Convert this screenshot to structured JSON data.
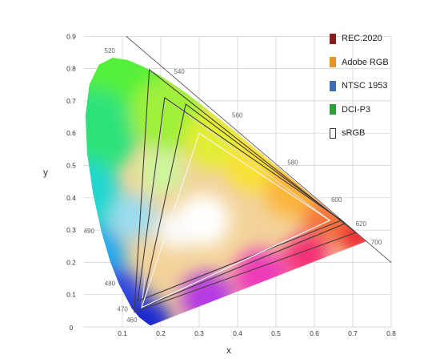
{
  "chart_data": {
    "type": "scatter",
    "xlabel": "x",
    "ylabel": "y",
    "xlim": [
      0,
      0.8
    ],
    "ylim": [
      0,
      0.9
    ],
    "x_ticks": [
      "0.1",
      "0.2",
      "0.3",
      "0.4",
      "0.5",
      "0.6",
      "0.7",
      "0.8"
    ],
    "y_ticks": [
      "0",
      "0.1",
      "0.2",
      "0.3",
      "0.4",
      "0.5",
      "0.6",
      "0.7",
      "0.8",
      "0.9"
    ],
    "spectral_locus": [
      [
        0.1741,
        0.005
      ],
      [
        0.1733,
        0.0048
      ],
      [
        0.1666,
        0.0089
      ],
      [
        0.144,
        0.0297
      ],
      [
        0.1241,
        0.0578
      ],
      [
        0.0913,
        0.1327
      ],
      [
        0.0687,
        0.2007
      ],
      [
        0.0454,
        0.295
      ],
      [
        0.0235,
        0.4127
      ],
      [
        0.0082,
        0.5384
      ],
      [
        0.0039,
        0.6548
      ],
      [
        0.0139,
        0.7502
      ],
      [
        0.0389,
        0.812
      ],
      [
        0.0743,
        0.8338
      ],
      [
        0.1142,
        0.8262
      ],
      [
        0.1547,
        0.8059
      ],
      [
        0.1929,
        0.7816
      ],
      [
        0.2296,
        0.7543
      ],
      [
        0.2658,
        0.7243
      ],
      [
        0.3016,
        0.6923
      ],
      [
        0.3373,
        0.6589
      ],
      [
        0.3731,
        0.6245
      ],
      [
        0.4087,
        0.5896
      ],
      [
        0.4441,
        0.5547
      ],
      [
        0.4788,
        0.5202
      ],
      [
        0.5125,
        0.4866
      ],
      [
        0.5448,
        0.4544
      ],
      [
        0.5752,
        0.4242
      ],
      [
        0.6029,
        0.3965
      ],
      [
        0.627,
        0.3725
      ],
      [
        0.6482,
        0.3514
      ],
      [
        0.6658,
        0.334
      ],
      [
        0.6801,
        0.3197
      ],
      [
        0.6915,
        0.3083
      ],
      [
        0.7006,
        0.2993
      ],
      [
        0.7079,
        0.292
      ],
      [
        0.714,
        0.2859
      ],
      [
        0.719,
        0.2809
      ],
      [
        0.723,
        0.277
      ],
      [
        0.726,
        0.274
      ],
      [
        0.7347,
        0.2653
      ]
    ],
    "wavelength_labels": [
      {
        "label": "460",
        "x": 0.144,
        "y": 0.03
      },
      {
        "label": "470",
        "x": 0.124,
        "y": 0.058
      },
      {
        "label": "480",
        "x": 0.091,
        "y": 0.133
      },
      {
        "label": "490",
        "x": 0.045,
        "y": 0.295
      },
      {
        "label": "520",
        "x": 0.074,
        "y": 0.834
      },
      {
        "label": "540",
        "x": 0.23,
        "y": 0.754
      },
      {
        "label": "560",
        "x": 0.373,
        "y": 0.624
      },
      {
        "label": "580",
        "x": 0.513,
        "y": 0.487
      },
      {
        "label": "600",
        "x": 0.627,
        "y": 0.372
      },
      {
        "label": "620",
        "x": 0.691,
        "y": 0.308
      },
      {
        "label": "700",
        "x": 0.735,
        "y": 0.265
      }
    ],
    "series": [
      {
        "name": "REC.2020",
        "color": "#8b1a1a",
        "points": [
          [
            0.708,
            0.292
          ],
          [
            0.17,
            0.797
          ],
          [
            0.131,
            0.046
          ]
        ]
      },
      {
        "name": "Adobe RGB",
        "color": "#e8922a",
        "points": [
          [
            0.64,
            0.33
          ],
          [
            0.21,
            0.71
          ],
          [
            0.15,
            0.06
          ]
        ]
      },
      {
        "name": "NTSC 1953",
        "color": "#3a6fb5",
        "points": [
          [
            0.67,
            0.33
          ],
          [
            0.21,
            0.71
          ],
          [
            0.14,
            0.08
          ]
        ]
      },
      {
        "name": "DCI-P3",
        "color": "#2e9e3a",
        "points": [
          [
            0.68,
            0.32
          ],
          [
            0.265,
            0.69
          ],
          [
            0.15,
            0.06
          ]
        ]
      },
      {
        "name": "sRGB",
        "color": "#ffffff",
        "points": [
          [
            0.64,
            0.33
          ],
          [
            0.3,
            0.6
          ],
          [
            0.15,
            0.06
          ]
        ]
      }
    ]
  }
}
